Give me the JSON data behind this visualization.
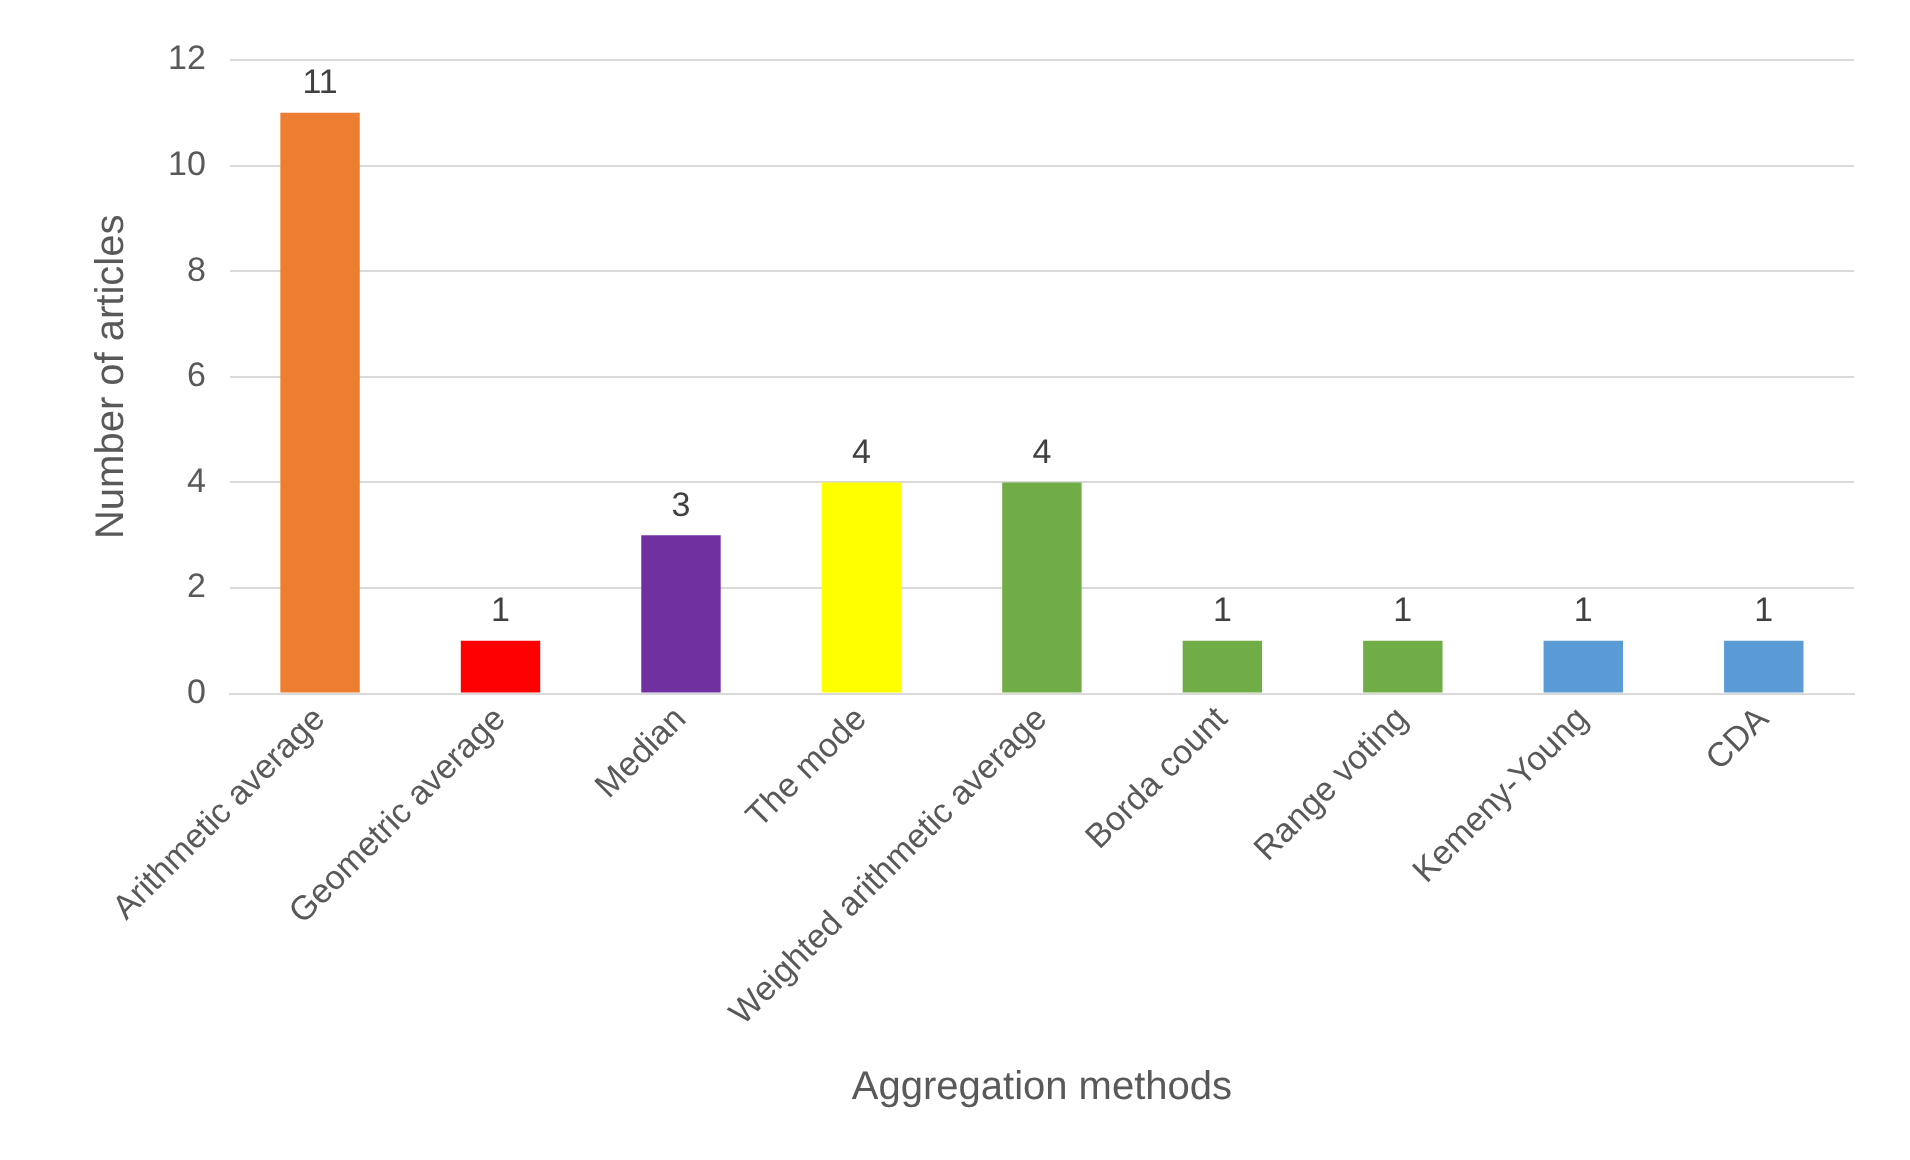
{
  "chart_data": {
    "type": "bar",
    "xlabel": "Aggregation methods",
    "ylabel": "Number of articles",
    "categories": [
      "Arithmetic average",
      "Geometric average",
      "Median",
      "The mode",
      "Weighted arithmetic average",
      "Borda count",
      "Range voting",
      "Kemeny-Young",
      "CDA"
    ],
    "values": [
      11,
      1,
      3,
      4,
      4,
      1,
      1,
      1,
      1
    ],
    "colors": [
      "#ed7d31",
      "#ff0000",
      "#7030a0",
      "#ffff00",
      "#70ad47",
      "#70ad47",
      "#70ad47",
      "#5b9bd5",
      "#5b9bd5"
    ],
    "ylim": [
      0,
      12
    ],
    "yticks": [
      0,
      2,
      4,
      6,
      8,
      10,
      12
    ],
    "grid": "y",
    "data_labels": true,
    "legend": false
  }
}
